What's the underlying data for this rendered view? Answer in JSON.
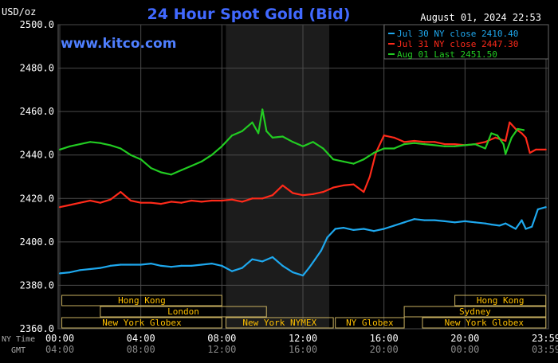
{
  "header": {
    "title": "24 Hour Spot Gold (Bid)",
    "unit": "USD/oz",
    "timestamp": "August 01, 2024 22:53",
    "site": "www.kitco.com"
  },
  "chart_data": {
    "type": "line",
    "title": "24 Hour Spot Gold (Bid)",
    "ylabel": "USD/oz",
    "ylim": [
      2360,
      2500
    ],
    "yticks": [
      "2500.0",
      "2480.0",
      "2460.0",
      "2440.0",
      "2420.0",
      "2400.0",
      "2380.0",
      "2360.0"
    ],
    "xlim": [
      0,
      24
    ],
    "x_axis_label_ny": "NY Time",
    "x_axis_label_gmt": "GMT",
    "xticks_ny": [
      "00:00",
      "04:00",
      "08:00",
      "12:00",
      "16:00",
      "20:00",
      "23:59"
    ],
    "xticks_gmt": [
      "04:00",
      "08:00",
      "12:00",
      "16:00",
      "20:00",
      "00:00",
      "03:59"
    ],
    "grid": true,
    "legend_position": "top-right",
    "shaded_window_hours": [
      8.2,
      13.3
    ],
    "series": [
      {
        "name": "Jul 30 NY close 2410.40",
        "color": "#1ea8ee",
        "x": [
          0,
          0.5,
          1,
          1.5,
          2,
          2.5,
          3,
          3.5,
          4,
          4.5,
          5,
          5.5,
          6,
          6.5,
          7,
          7.5,
          8,
          8.5,
          9,
          9.5,
          10,
          10.5,
          11,
          11.5,
          12,
          12.3,
          12.6,
          12.9,
          13.2,
          13.6,
          14,
          14.5,
          15,
          15.5,
          16,
          16.5,
          17,
          17.5,
          18,
          18.5,
          19,
          19.5,
          20,
          20.5,
          21,
          21.3,
          21.7,
          22,
          22.5,
          22.8,
          23,
          23.3,
          23.6,
          23.99
        ],
        "y": [
          2385.5,
          2386.0,
          2387.0,
          2387.5,
          2388.0,
          2389.0,
          2389.5,
          2389.5,
          2389.5,
          2390.0,
          2389.0,
          2388.5,
          2389.0,
          2389.0,
          2389.5,
          2390.0,
          2389.0,
          2386.5,
          2388.0,
          2392.0,
          2391.0,
          2393.0,
          2389.0,
          2386.0,
          2384.5,
          2388.0,
          2392.0,
          2396.0,
          2402.0,
          2406.0,
          2406.5,
          2405.5,
          2406.0,
          2405.0,
          2406.0,
          2407.5,
          2409.0,
          2410.5,
          2410.0,
          2410.0,
          2409.5,
          2409.0,
          2409.5,
          2409.0,
          2408.5,
          2408.0,
          2407.5,
          2408.5,
          2406.0,
          2410.0,
          2406.0,
          2407.0,
          2415.0,
          2416.0
        ]
      },
      {
        "name": "Jul 31 NY close 2447.30",
        "color": "#ff2a1a",
        "x": [
          0,
          0.5,
          1,
          1.5,
          2,
          2.5,
          3,
          3.5,
          4,
          4.5,
          5,
          5.5,
          6,
          6.5,
          7,
          7.5,
          8,
          8.5,
          9,
          9.5,
          10,
          10.5,
          11,
          11.5,
          12,
          12.5,
          13,
          13.5,
          14,
          14.5,
          15,
          15.3,
          15.6,
          16,
          16.5,
          17,
          17.5,
          18,
          18.5,
          19,
          19.5,
          20,
          20.5,
          21,
          21.5,
          22,
          22.2,
          22.5,
          22.8,
          23,
          23.2,
          23.5,
          23.99
        ],
        "y": [
          2416.0,
          2417.0,
          2418.0,
          2419.0,
          2418.0,
          2419.5,
          2423.0,
          2419.0,
          2418.0,
          2418.0,
          2417.5,
          2418.5,
          2418.0,
          2419.0,
          2418.5,
          2419.0,
          2419.0,
          2419.5,
          2418.5,
          2420.0,
          2420.0,
          2421.5,
          2426.0,
          2422.5,
          2421.5,
          2422.0,
          2423.0,
          2425.0,
          2426.0,
          2426.5,
          2423.0,
          2430.0,
          2441.0,
          2449.0,
          2448.0,
          2446.0,
          2446.5,
          2446.0,
          2446.0,
          2445.0,
          2445.0,
          2444.5,
          2445.0,
          2446.0,
          2448.0,
          2446.5,
          2455.0,
          2452.0,
          2450.0,
          2448.0,
          2441.0,
          2442.5,
          2442.5
        ]
      },
      {
        "name": "Aug 01 Last 2451.50",
        "color": "#22cc22",
        "x": [
          0,
          0.5,
          1,
          1.5,
          2,
          2.5,
          3,
          3.5,
          4,
          4.5,
          5,
          5.5,
          6,
          6.5,
          7,
          7.5,
          8,
          8.5,
          9,
          9.5,
          9.8,
          10,
          10.2,
          10.5,
          11,
          11.5,
          12,
          12.5,
          13,
          13.5,
          14,
          14.5,
          15,
          15.5,
          16,
          16.5,
          17,
          17.5,
          18,
          18.5,
          19,
          19.5,
          20,
          20.5,
          21,
          21.3,
          21.6,
          21.9,
          22,
          22.3,
          22.6,
          22.9
        ],
        "y": [
          2442.5,
          2444.0,
          2445.0,
          2446.0,
          2445.5,
          2444.5,
          2443.0,
          2440.0,
          2438.0,
          2434.0,
          2432.0,
          2431.0,
          2433.0,
          2435.0,
          2437.0,
          2440.0,
          2444.0,
          2449.0,
          2451.0,
          2455.0,
          2450.0,
          2461.0,
          2451.0,
          2448.0,
          2448.5,
          2446.0,
          2444.0,
          2446.0,
          2443.0,
          2438.0,
          2437.0,
          2436.0,
          2438.0,
          2441.0,
          2443.0,
          2443.0,
          2445.0,
          2445.5,
          2445.0,
          2444.5,
          2444.0,
          2444.0,
          2444.5,
          2445.0,
          2443.0,
          2450.0,
          2449.0,
          2445.0,
          2440.5,
          2448.0,
          2452.0,
          2451.5
        ]
      }
    ]
  },
  "sessions": [
    {
      "label": "Hong Kong",
      "row": 0,
      "start": 0.1,
      "end": 8.0
    },
    {
      "label": "Hong Kong",
      "row": 0,
      "start": 19.5,
      "end": 23.99
    },
    {
      "label": "London",
      "row": 1,
      "start": 2.0,
      "end": 10.2
    },
    {
      "label": "Sydney",
      "row": 1,
      "start": 17.0,
      "end": 23.99
    },
    {
      "label": "New York Globex",
      "row": 2,
      "start": 0.1,
      "end": 8.0
    },
    {
      "label": "New York NYMEX",
      "row": 2,
      "start": 8.2,
      "end": 13.5
    },
    {
      "label": "NY Globex",
      "row": 2,
      "start": 13.6,
      "end": 17.0
    },
    {
      "label": "New York Globex",
      "row": 2,
      "start": 17.9,
      "end": 23.99
    }
  ]
}
